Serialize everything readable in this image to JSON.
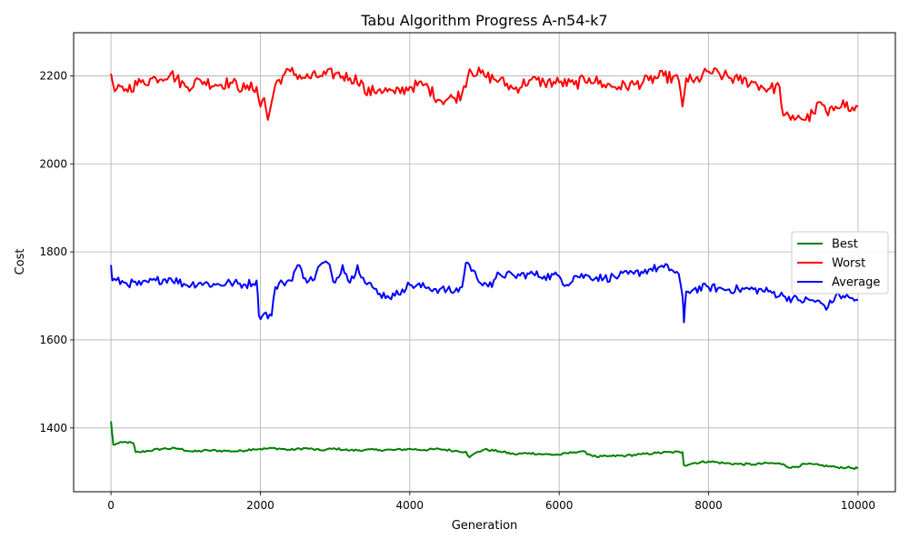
{
  "chart_data": {
    "type": "line",
    "title": "Tabu Algorithm Progress A-n54-k7",
    "xlabel": "Generation",
    "ylabel": "Cost",
    "xlim": [
      -500,
      10500
    ],
    "ylim": [
      1255,
      2298
    ],
    "xticks": [
      0,
      2000,
      4000,
      6000,
      8000,
      10000
    ],
    "yticks": [
      1400,
      1600,
      1800,
      2000,
      2200
    ],
    "xtick_labels": [
      "0",
      "2000",
      "4000",
      "6000",
      "8000",
      "10000"
    ],
    "ytick_labels": [
      "1400",
      "1600",
      "1800",
      "2000",
      "2200"
    ],
    "grid": true,
    "legend_position": "center-right",
    "series": [
      {
        "name": "Best",
        "color": "#008000",
        "x": [
          0,
          30,
          100,
          200,
          300,
          330,
          380,
          500,
          700,
          900,
          1100,
          1300,
          1500,
          1700,
          1900,
          2000,
          2200,
          2400,
          2600,
          2800,
          3000,
          3200,
          3400,
          3600,
          3800,
          4000,
          4200,
          4400,
          4600,
          4750,
          4800,
          4900,
          5000,
          5200,
          5400,
          5600,
          5800,
          6000,
          6200,
          6300,
          6500,
          6700,
          6900,
          7100,
          7300,
          7500,
          7650,
          7670,
          7800,
          8000,
          8200,
          8400,
          8600,
          8800,
          9000,
          9100,
          9300,
          9500,
          9700,
          9850,
          10000
        ],
        "values": [
          1415,
          1362,
          1365,
          1368,
          1365,
          1345,
          1345,
          1348,
          1353,
          1353,
          1346,
          1349,
          1348,
          1347,
          1352,
          1352,
          1354,
          1350,
          1354,
          1349,
          1353,
          1349,
          1350,
          1350,
          1350,
          1352,
          1350,
          1352,
          1348,
          1346,
          1333,
          1345,
          1351,
          1347,
          1340,
          1343,
          1340,
          1339,
          1345,
          1347,
          1334,
          1336,
          1337,
          1340,
          1343,
          1345,
          1345,
          1315,
          1320,
          1324,
          1320,
          1318,
          1317,
          1320,
          1318,
          1309,
          1318,
          1315,
          1311,
          1310,
          1308
        ]
      },
      {
        "name": "Worst",
        "color": "#ff0000",
        "x": [
          0,
          50,
          200,
          400,
          600,
          800,
          1000,
          1200,
          1400,
          1600,
          1800,
          1950,
          2000,
          2050,
          2100,
          2150,
          2200,
          2300,
          2400,
          2600,
          2800,
          3000,
          3200,
          3350,
          3400,
          3600,
          3800,
          4000,
          4200,
          4400,
          4600,
          4700,
          4800,
          5000,
          5200,
          5400,
          5600,
          5800,
          6000,
          6200,
          6400,
          6600,
          6800,
          7000,
          7200,
          7400,
          7600,
          7650,
          7700,
          7800,
          8000,
          8200,
          8400,
          8600,
          8800,
          8950,
          9000,
          9100,
          9200,
          9300,
          9400,
          9500,
          9600,
          9700,
          9800,
          9900,
          10000
        ],
        "values": [
          2205,
          2165,
          2170,
          2185,
          2195,
          2205,
          2175,
          2190,
          2180,
          2185,
          2170,
          2175,
          2130,
          2150,
          2100,
          2140,
          2180,
          2200,
          2210,
          2195,
          2200,
          2205,
          2195,
          2190,
          2160,
          2170,
          2160,
          2175,
          2180,
          2145,
          2150,
          2160,
          2215,
          2200,
          2190,
          2170,
          2190,
          2185,
          2185,
          2180,
          2195,
          2180,
          2175,
          2180,
          2190,
          2200,
          2190,
          2130,
          2195,
          2185,
          2210,
          2200,
          2190,
          2185,
          2170,
          2175,
          2110,
          2100,
          2110,
          2100,
          2115,
          2140,
          2110,
          2130,
          2145,
          2120,
          2130
        ]
      },
      {
        "name": "Average",
        "color": "#0000ff",
        "x": [
          0,
          20,
          200,
          400,
          600,
          800,
          1000,
          1200,
          1400,
          1600,
          1800,
          1950,
          1980,
          2050,
          2150,
          2200,
          2300,
          2400,
          2500,
          2600,
          2700,
          2800,
          2900,
          3000,
          3100,
          3200,
          3300,
          3400,
          3500,
          3600,
          3700,
          3800,
          3900,
          4000,
          4200,
          4400,
          4600,
          4700,
          4750,
          4800,
          4900,
          5000,
          5100,
          5150,
          5200,
          5400,
          5600,
          5800,
          6000,
          6100,
          6200,
          6400,
          6600,
          6800,
          7000,
          7200,
          7400,
          7500,
          7600,
          7650,
          7670,
          7700,
          7800,
          8000,
          8200,
          8400,
          8600,
          8800,
          9000,
          9200,
          9400,
          9600,
          9700,
          9800,
          9900,
          10000
        ],
        "values": [
          1770,
          1735,
          1730,
          1725,
          1735,
          1740,
          1725,
          1730,
          1725,
          1730,
          1725,
          1735,
          1655,
          1660,
          1655,
          1720,
          1730,
          1735,
          1770,
          1740,
          1735,
          1770,
          1775,
          1730,
          1770,
          1730,
          1770,
          1730,
          1720,
          1705,
          1700,
          1700,
          1715,
          1725,
          1720,
          1715,
          1710,
          1720,
          1775,
          1770,
          1740,
          1730,
          1720,
          1740,
          1750,
          1745,
          1750,
          1745,
          1745,
          1725,
          1745,
          1745,
          1740,
          1745,
          1750,
          1760,
          1765,
          1760,
          1750,
          1700,
          1640,
          1710,
          1715,
          1720,
          1715,
          1715,
          1715,
          1710,
          1700,
          1690,
          1690,
          1675,
          1700,
          1700,
          1695,
          1690
        ]
      }
    ]
  }
}
